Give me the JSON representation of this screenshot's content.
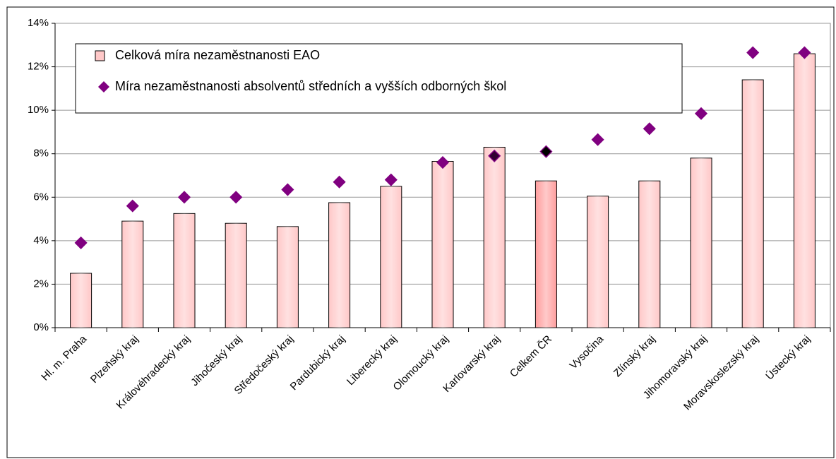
{
  "chart_data": {
    "type": "bar",
    "categories": [
      "Hl. m. Praha",
      "Plzeňský kraj",
      "Královéhradecký kraj",
      "Jihočeský kraj",
      "Středočeský kraj",
      "Pardubický kraj",
      "Liberecký kraj",
      "Olomoucký kraj",
      "Karlovarský kraj",
      "Celkem ČR",
      "Vysočina",
      "Zlínský kraj",
      "Jihomoravský kraj",
      "Moravskoslezský kraj",
      "Ústecký kraj"
    ],
    "series": [
      {
        "name": "Celková míra nezaměstnanosti EAO",
        "type": "bar",
        "color": "#ffc8c8",
        "colors": [
          "#ffc8c8",
          "#ffc8c8",
          "#ffc8c8",
          "#ffc8c8",
          "#ffc8c8",
          "#ffc8c8",
          "#ffc8c8",
          "#ffc8c8",
          "#ffc8c8",
          "#ff9e9e",
          "#ffc8c8",
          "#ffc8c8",
          "#ffc8c8",
          "#ffc8c8",
          "#ffc8c8"
        ],
        "values": [
          2.5,
          4.9,
          5.25,
          4.8,
          4.65,
          5.75,
          6.5,
          7.65,
          8.3,
          6.75,
          6.05,
          6.75,
          7.8,
          11.4,
          12.6
        ]
      },
      {
        "name": "Míra nezaměstnanosti absolventů středních a vyšších odborných škol",
        "type": "scatter",
        "color": "#800080",
        "colors": [
          "#800080",
          "#800080",
          "#800080",
          "#800080",
          "#800080",
          "#800080",
          "#800080",
          "#800080",
          "#300030",
          "#000000",
          "#800080",
          "#800080",
          "#800080",
          "#800080",
          "#800080"
        ],
        "values": [
          3.9,
          5.6,
          6.0,
          6.0,
          6.35,
          6.7,
          6.8,
          7.6,
          7.9,
          8.1,
          8.65,
          9.15,
          9.85,
          12.65,
          12.65
        ]
      }
    ],
    "ylim": [
      0,
      14
    ],
    "yticks": [
      {
        "value": 0,
        "label": "0%"
      },
      {
        "value": 2,
        "label": "2%"
      },
      {
        "value": 4,
        "label": "4%"
      },
      {
        "value": 6,
        "label": "6%"
      },
      {
        "value": 8,
        "label": "8%"
      },
      {
        "value": 10,
        "label": "10%"
      },
      {
        "value": 12,
        "label": "12%"
      },
      {
        "value": 14,
        "label": "14%"
      }
    ],
    "grid": true,
    "legend": "top-left"
  }
}
